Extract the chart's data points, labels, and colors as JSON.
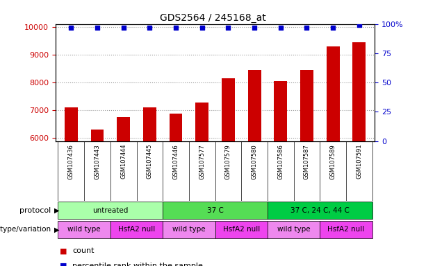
{
  "title": "GDS2564 / 245168_at",
  "samples": [
    "GSM107436",
    "GSM107443",
    "GSM107444",
    "GSM107445",
    "GSM107446",
    "GSM107577",
    "GSM107579",
    "GSM107580",
    "GSM107586",
    "GSM107587",
    "GSM107589",
    "GSM107591"
  ],
  "counts": [
    7100,
    6320,
    6760,
    7100,
    6880,
    7280,
    8140,
    8440,
    8060,
    8440,
    9300,
    9440
  ],
  "percentile_ranks": [
    97,
    97,
    97,
    97,
    97,
    97,
    97,
    97,
    97,
    97,
    97,
    99
  ],
  "bar_color": "#cc0000",
  "dot_color": "#0000cc",
  "ylim_left": [
    5900,
    10100
  ],
  "ylim_right": [
    0,
    100
  ],
  "yticks_left": [
    6000,
    7000,
    8000,
    9000,
    10000
  ],
  "yticks_right": [
    0,
    25,
    50,
    75,
    100
  ],
  "protocols": [
    {
      "label": "untreated",
      "start": 0,
      "end": 3,
      "color": "#aaffaa"
    },
    {
      "label": "37 C",
      "start": 4,
      "end": 7,
      "color": "#55dd55"
    },
    {
      "label": "37 C, 24 C, 44 C",
      "start": 8,
      "end": 11,
      "color": "#00cc44"
    }
  ],
  "genotypes": [
    {
      "label": "wild type",
      "start": 0,
      "end": 1,
      "color": "#ee88ee"
    },
    {
      "label": "HsfA2 null",
      "start": 2,
      "end": 3,
      "color": "#ee44ee"
    },
    {
      "label": "wild type",
      "start": 4,
      "end": 5,
      "color": "#ee88ee"
    },
    {
      "label": "HsfA2 null",
      "start": 6,
      "end": 7,
      "color": "#ee44ee"
    },
    {
      "label": "wild type",
      "start": 8,
      "end": 9,
      "color": "#ee88ee"
    },
    {
      "label": "HsfA2 null",
      "start": 10,
      "end": 11,
      "color": "#ee44ee"
    }
  ],
  "protocol_label": "protocol",
  "genotype_label": "genotype/variation",
  "legend_count_label": "count",
  "legend_percentile_label": "percentile rank within the sample",
  "background_color": "#ffffff",
  "axis_label_color_left": "#cc0000",
  "axis_label_color_right": "#0000cc",
  "grid_color": "#999999",
  "sample_bg_color": "#dddddd",
  "bar_width": 0.5
}
